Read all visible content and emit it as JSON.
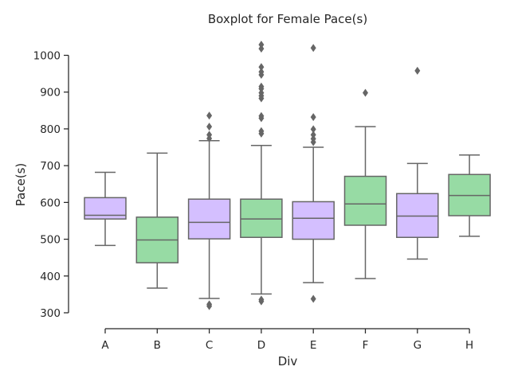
{
  "chart_data": {
    "type": "boxplot",
    "title": "Boxplot for Female Pace(s)",
    "xlabel": "Div",
    "ylabel": "Pace(s)",
    "ylim": [
      280,
      1040
    ],
    "yticks": [
      300,
      400,
      500,
      600,
      700,
      800,
      900,
      1000
    ],
    "grid": false,
    "categories": [
      "A",
      "B",
      "C",
      "D",
      "E",
      "F",
      "G",
      "H"
    ],
    "colors": {
      "purple": "#D4BFFF",
      "green": "#97DBA4",
      "line": "#666666"
    },
    "boxes": [
      {
        "category": "A",
        "color": "purple",
        "whisker_low": 483,
        "q1": 555,
        "median": 565,
        "q3": 613,
        "whisker_high": 682,
        "outliers": []
      },
      {
        "category": "B",
        "color": "green",
        "whisker_low": 367,
        "q1": 436,
        "median": 498,
        "q3": 560,
        "whisker_high": 734,
        "outliers": []
      },
      {
        "category": "C",
        "color": "purple",
        "whisker_low": 339,
        "q1": 501,
        "median": 546,
        "q3": 609,
        "whisker_high": 768,
        "outliers": [
          318,
          323,
          774,
          784,
          806,
          836
        ]
      },
      {
        "category": "D",
        "color": "green",
        "whisker_low": 351,
        "q1": 505,
        "median": 555,
        "q3": 609,
        "whisker_high": 755,
        "outliers": [
          331,
          336,
          787,
          794,
          829,
          835,
          883,
          890,
          898,
          909,
          915,
          947,
          955,
          968,
          1018,
          1029
        ]
      },
      {
        "category": "E",
        "color": "purple",
        "whisker_low": 382,
        "q1": 500,
        "median": 557,
        "q3": 602,
        "whisker_high": 750,
        "outliers": [
          338,
          764,
          773,
          784,
          799,
          832,
          1020
        ]
      },
      {
        "category": "F",
        "color": "green",
        "whisker_low": 393,
        "q1": 538,
        "median": 596,
        "q3": 671,
        "whisker_high": 806,
        "outliers": [
          898
        ]
      },
      {
        "category": "G",
        "color": "purple",
        "whisker_low": 446,
        "q1": 505,
        "median": 563,
        "q3": 624,
        "whisker_high": 706,
        "outliers": [
          958
        ]
      },
      {
        "category": "H",
        "color": "green",
        "whisker_low": 508,
        "q1": 564,
        "median": 619,
        "q3": 676,
        "whisker_high": 729,
        "outliers": []
      }
    ]
  }
}
